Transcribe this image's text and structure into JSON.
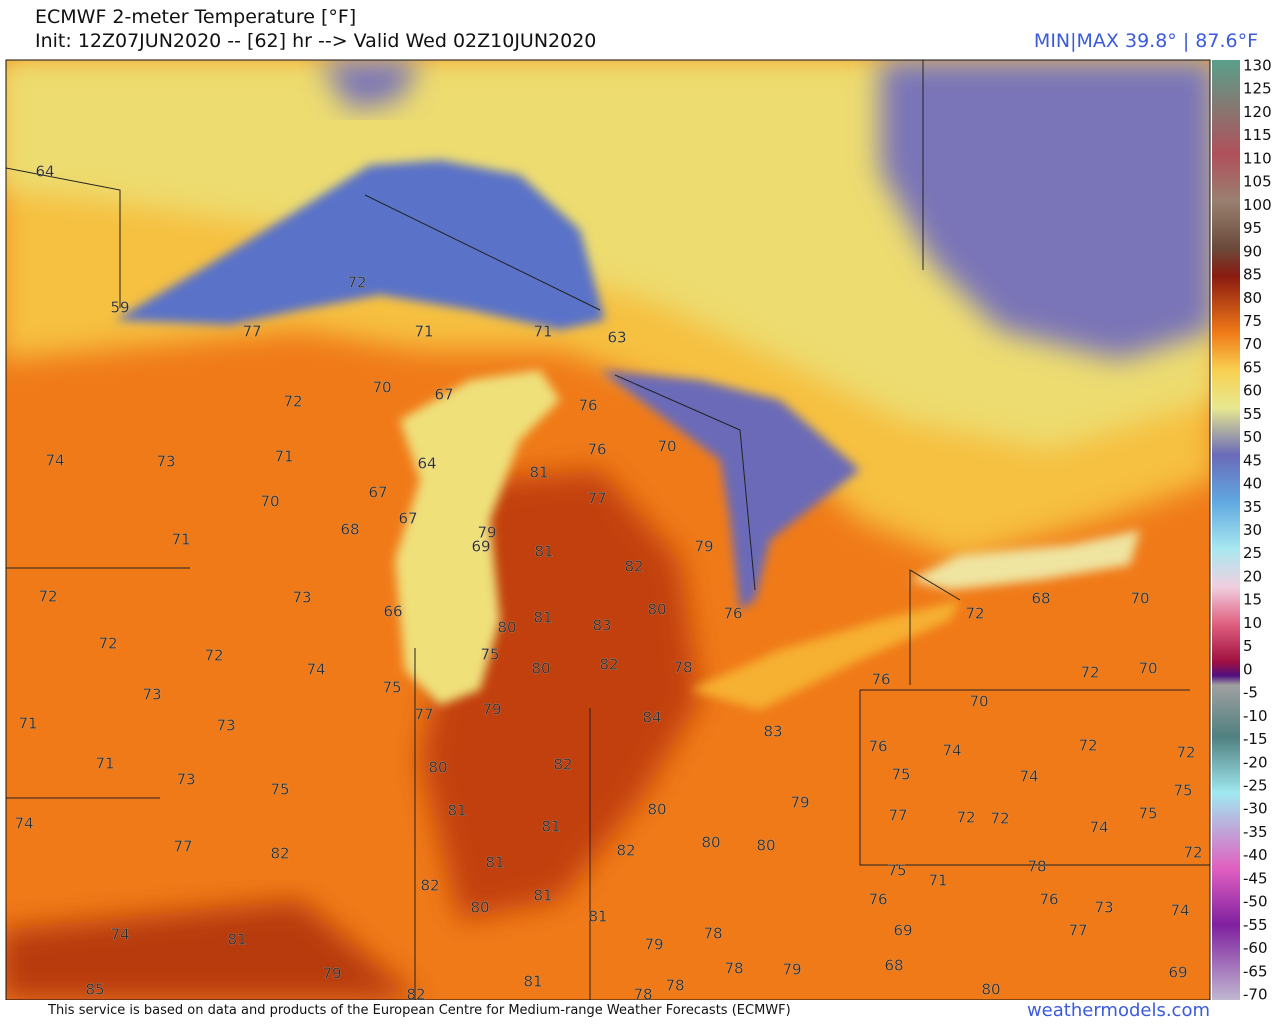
{
  "header": {
    "title": "ECMWF 2-meter Temperature [°F]",
    "subtitle": "Init: 12Z07JUN2020 -- [62] hr --> Valid Wed 02Z10JUN2020",
    "min_max": "MIN|MAX 39.8° | 87.6°F"
  },
  "colorbar": {
    "ticks": [
      130,
      125,
      120,
      115,
      110,
      105,
      100,
      95,
      90,
      85,
      80,
      75,
      70,
      65,
      60,
      55,
      50,
      45,
      40,
      35,
      30,
      25,
      20,
      15,
      10,
      5,
      0,
      -5,
      -10,
      -15,
      -20,
      -25,
      -30,
      -35,
      -40,
      -45,
      -50,
      -55,
      -60,
      -65,
      -70
    ]
  },
  "map": {
    "labels": [
      64,
      59,
      72,
      77,
      71,
      71,
      63,
      70,
      67,
      72,
      76,
      74,
      73,
      71,
      64,
      76,
      70,
      81,
      67,
      70,
      77,
      67,
      68,
      79,
      71,
      69,
      81,
      79,
      82,
      72,
      73,
      66,
      80,
      81,
      72,
      68,
      70,
      72,
      80,
      83,
      76,
      72,
      74,
      75,
      80,
      82,
      78,
      72,
      70,
      73,
      75,
      76,
      70,
      71,
      73,
      77,
      79,
      84,
      83,
      76,
      74,
      72,
      72,
      71,
      80,
      82,
      75,
      74,
      73,
      75,
      75,
      79,
      80,
      81,
      81,
      74,
      77,
      72,
      72,
      75,
      74,
      77,
      80,
      80,
      82,
      82,
      72,
      81,
      75,
      78,
      71,
      82,
      81,
      80,
      76,
      76,
      73,
      81,
      74,
      81,
      74,
      69,
      77,
      79,
      78,
      79,
      78,
      79,
      68,
      81,
      78,
      85,
      82,
      78,
      80,
      69
    ]
  },
  "footer": {
    "credit": "This service is based on data and products of the European Centre for Medium-range Weather Forecasts (ECMWF)",
    "brand": "weathermodels.com"
  }
}
